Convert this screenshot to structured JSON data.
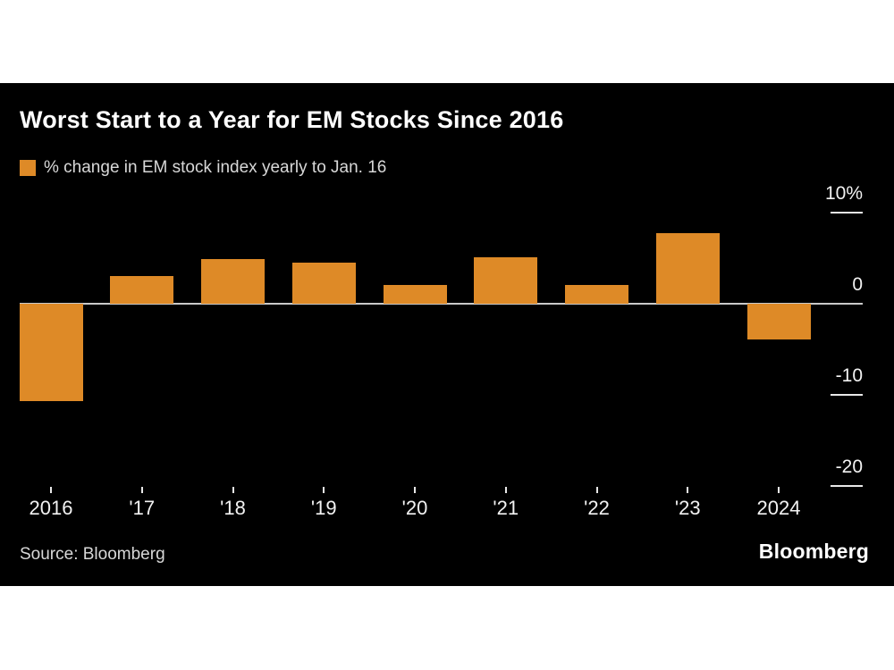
{
  "chart": {
    "title": "Worst Start to a Year for EM Stocks Since 2016",
    "legend_label": "% change in EM stock index yearly to Jan. 16",
    "source": "Source: Bloomberg",
    "brand": "Bloomberg",
    "accent_color": "#de8a27",
    "background_color": "#000000",
    "axis_line_color": "#c9c9c9"
  },
  "chart_data": {
    "type": "bar",
    "title": "Worst Start to a Year for EM Stocks Since 2016",
    "legend": [
      "% change in EM stock index yearly to Jan. 16"
    ],
    "legend_position": "top-left",
    "categories": [
      "2016",
      "'17",
      "'18",
      "'19",
      "'20",
      "'21",
      "'22",
      "'23",
      "2024"
    ],
    "values": [
      -10.7,
      3.0,
      4.9,
      4.5,
      2.1,
      5.1,
      2.1,
      7.7,
      -3.9
    ],
    "xlabel": "",
    "ylabel": "",
    "ylim": [
      -23,
      12
    ],
    "yticks": [
      {
        "value": 10,
        "label": "10%"
      },
      {
        "value": 0,
        "label": "0"
      },
      {
        "value": -10,
        "label": "-10"
      },
      {
        "value": -20,
        "label": "-20"
      }
    ],
    "grid": false,
    "bar_color": "#de8a27"
  }
}
